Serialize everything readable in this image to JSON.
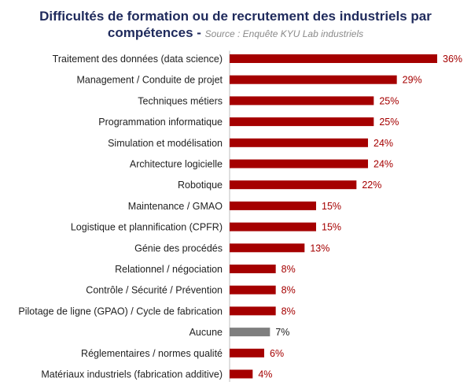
{
  "header": {
    "title_line1": "Difficultés de formation ou de recrutement des industriels par",
    "title_line2": "compétences",
    "separator": " - ",
    "source": "Source : Enquête KYU Lab industriels"
  },
  "chart_data": {
    "type": "bar",
    "orientation": "horizontal",
    "title": "Difficultés de formation ou de recrutement des industriels par compétences",
    "subtitle": "Source : Enquête KYU Lab industriels",
    "categories": [
      "Traitement des données (data science)",
      "Management / Conduite de projet",
      "Techniques métiers",
      "Programmation informatique",
      "Simulation et modélisation",
      "Architecture logicielle",
      "Robotique",
      "Maintenance / GMAO",
      "Logistique et plannification (CPFR)",
      "Génie des procédés",
      "Relationnel / négociation",
      "Contrôle / Sécurité / Prévention",
      "Pilotage de ligne (GPAO) / Cycle de fabrication",
      "Aucune",
      "Réglementaires / normes qualité",
      "Matériaux industriels (fabrication additive)"
    ],
    "values": [
      36,
      29,
      25,
      25,
      24,
      24,
      22,
      15,
      15,
      13,
      8,
      8,
      8,
      7,
      6,
      4
    ],
    "value_labels": [
      "36%",
      "29%",
      "25%",
      "25%",
      "24%",
      "24%",
      "22%",
      "15%",
      "15%",
      "13%",
      "8%",
      "8%",
      "8%",
      "7%",
      "6%",
      "4%"
    ],
    "xlim": [
      0,
      36
    ],
    "grid": false,
    "legend": "none",
    "colors": {
      "default": "#a50000",
      "highlight": "#7f7f7f",
      "default_label": "#a50000",
      "highlight_label": "#222222"
    },
    "highlight_category": "Aucune"
  }
}
